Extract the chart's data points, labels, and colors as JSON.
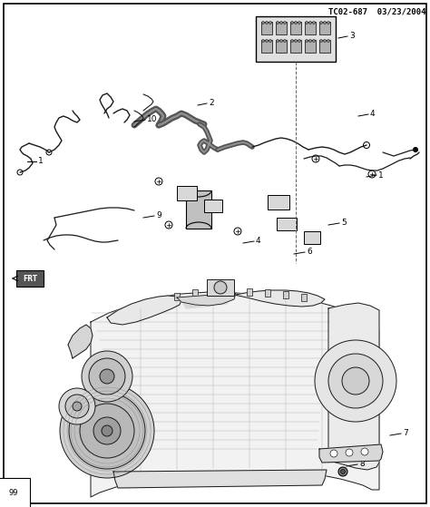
{
  "title": "TC02-687  03/23/2004",
  "bg_color": "#ffffff",
  "text_color": "#000000",
  "page_number": "99",
  "figsize": [
    4.74,
    5.59
  ],
  "dpi": 100
}
